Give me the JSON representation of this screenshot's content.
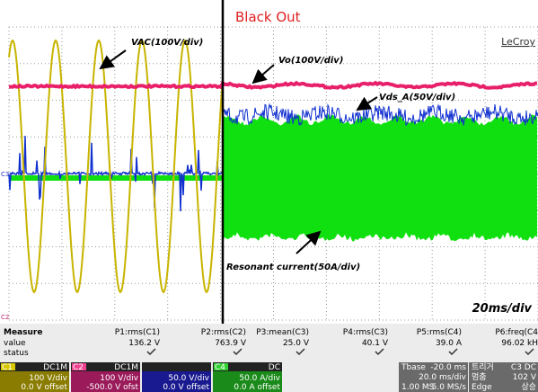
{
  "header": {
    "annotation": "Black Out",
    "brand": "LeCroy"
  },
  "labels": {
    "vac": "VAC(100V/div)",
    "vo": "Vo(100V/div)",
    "vds": "Vds_A(50V/div)",
    "current": "Resonant current(50A/div)",
    "timebase": "20ms/div"
  },
  "markers": [
    "C3",
    "C2"
  ],
  "measure": {
    "row_labels": [
      "Measure",
      "value",
      "status"
    ],
    "params": [
      {
        "name": "P1:rms(C1)",
        "value": "136.2 V"
      },
      {
        "name": "P2:rms(C2)",
        "value": "763.9 V"
      },
      {
        "name": "P3:mean(C3)",
        "value": "25.0 V"
      },
      {
        "name": "P4:rms(C3)",
        "value": "40.1 V"
      },
      {
        "name": "P5:rms(C4)",
        "value": "39.0 A"
      },
      {
        "name": "P6:freq(C4",
        "value": "96.02 kH"
      }
    ]
  },
  "channels": [
    {
      "id": "C1",
      "coupling": "DC1M",
      "scale": "100 V/div",
      "offset": "0.0 V offset"
    },
    {
      "id": "C2",
      "coupling": "DC1M",
      "scale": "100 V/div",
      "offset": "-500.0 V ofst"
    },
    {
      "scale": "50.0 V/div",
      "offset": "0.0 V offset"
    },
    {
      "id": "C4",
      "coupling": "DC",
      "scale": "50.0 A/div",
      "offset": "0.0 A offset"
    }
  ],
  "timebase": {
    "label": "Tbase",
    "delay": "-20.0 ms",
    "scale": "20.0 ms/div",
    "samples": "1.00 MS",
    "rate": "5.0 MS/s"
  },
  "trigger": {
    "label": "트리거",
    "source": "C3 DC",
    "mode": "멈춤",
    "level": "102 V",
    "type": "Edge",
    "slope": "상승"
  }
}
